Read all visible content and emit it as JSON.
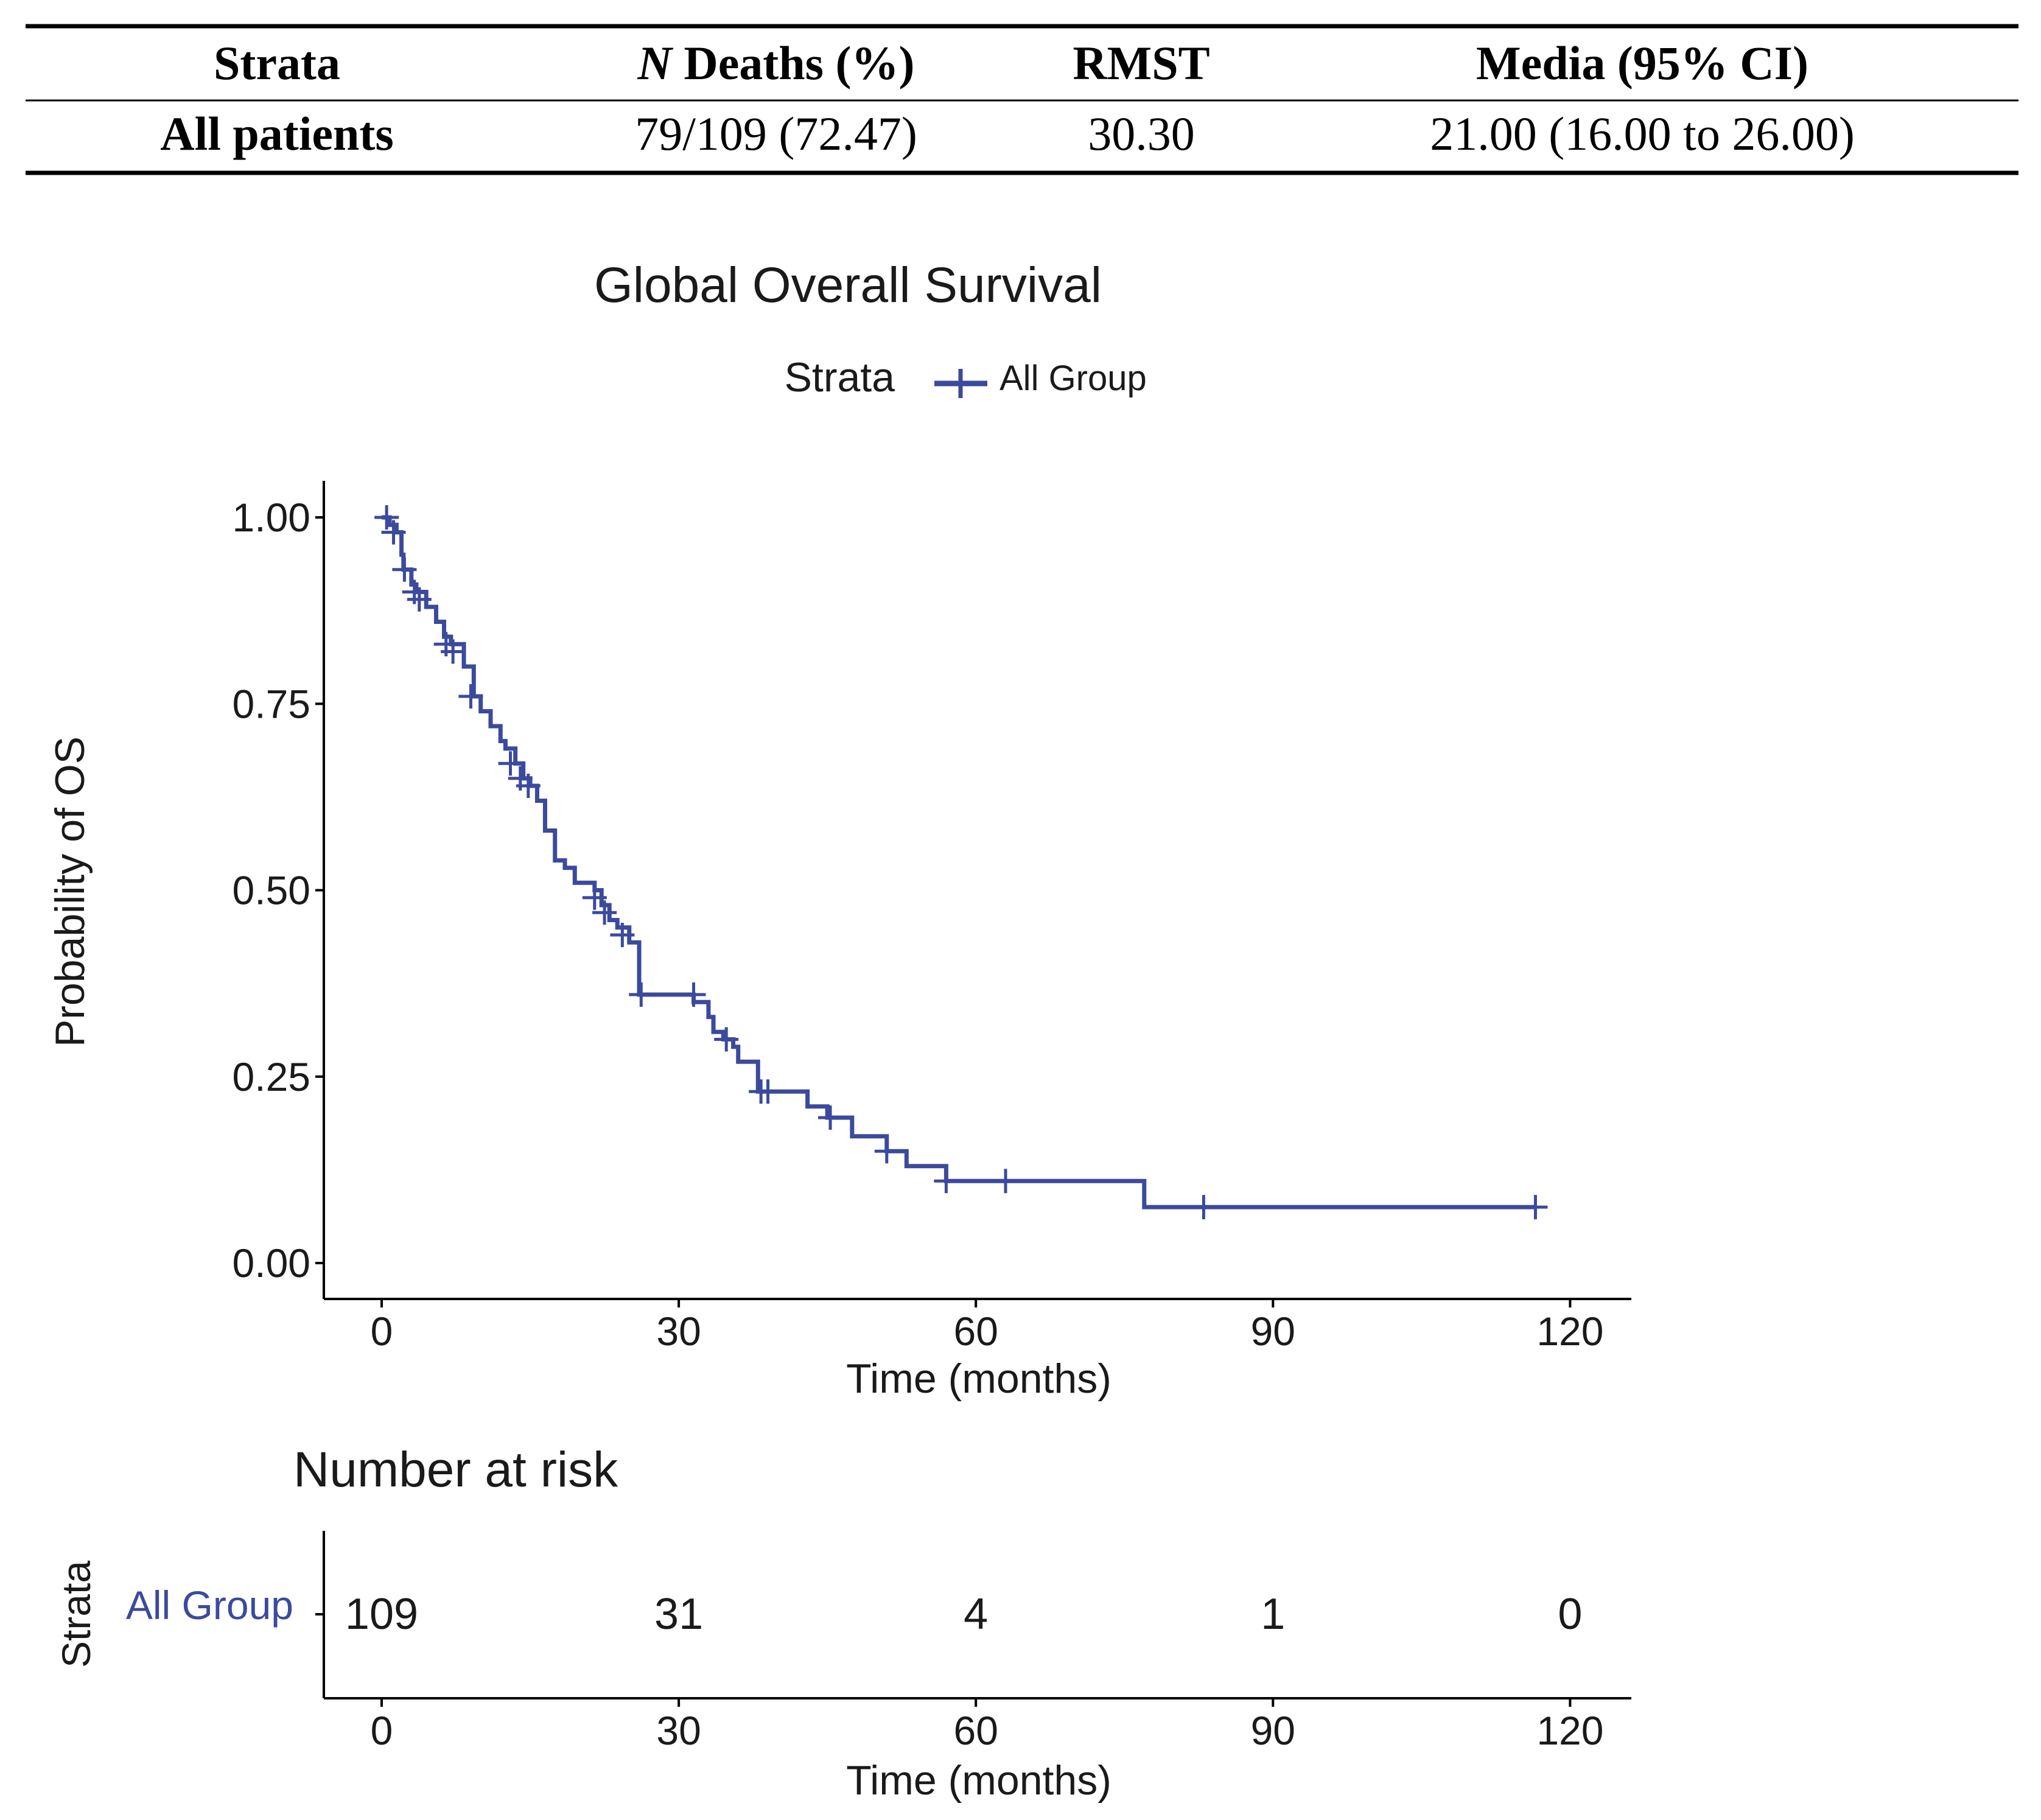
{
  "summary_table": {
    "headers": {
      "strata": "Strata",
      "n_italic": "N",
      "deaths_rest": " Deaths (%)",
      "rmst": "RMST",
      "median": "Media (95% CI)"
    },
    "rows": [
      {
        "strata": "All patients",
        "deaths": "79/109 (72.47)",
        "rmst": "30.30",
        "median": "21.00 (16.00 to 26.00)"
      }
    ]
  },
  "colors": {
    "series": "#3b4a9c",
    "axis": "#000000",
    "text": "#1a1a1a"
  },
  "chart_data": {
    "type": "line",
    "subtype": "kaplan-meier step",
    "title": "Global Overall Survival",
    "legend": {
      "title": "Strata",
      "label": "All Group",
      "placement": "top"
    },
    "xlabel": "Time (months)",
    "ylabel": "Probability of OS",
    "xlim": [
      -10,
      125
    ],
    "ylim": [
      -0.05,
      1.05
    ],
    "xticks": [
      0,
      30,
      60,
      90,
      120
    ],
    "xtick_labels": [
      "0",
      "30",
      "60",
      "90",
      "120"
    ],
    "yticks": [
      0,
      0.25,
      0.5,
      0.75,
      1.0
    ],
    "ytick_labels": [
      "0.00",
      "0.25",
      "0.50",
      "0.75",
      "1.00"
    ],
    "grid": false,
    "series": [
      {
        "name": "All Group",
        "steps": [
          [
            0,
            1.0
          ],
          [
            0.8,
            0.99
          ],
          [
            1.5,
            0.98
          ],
          [
            2,
            0.95
          ],
          [
            2.2,
            0.93
          ],
          [
            3,
            0.91
          ],
          [
            3.5,
            0.9
          ],
          [
            4.5,
            0.88
          ],
          [
            5.5,
            0.86
          ],
          [
            6.3,
            0.84
          ],
          [
            7,
            0.83
          ],
          [
            8.3,
            0.8
          ],
          [
            9.3,
            0.76
          ],
          [
            10,
            0.74
          ],
          [
            11,
            0.72
          ],
          [
            12,
            0.7
          ],
          [
            12.5,
            0.69
          ],
          [
            13.5,
            0.67
          ],
          [
            14.3,
            0.65
          ],
          [
            15,
            0.64
          ],
          [
            15.7,
            0.62
          ],
          [
            16.5,
            0.58
          ],
          [
            17.5,
            0.54
          ],
          [
            18.5,
            0.53
          ],
          [
            19.5,
            0.51
          ],
          [
            21.5,
            0.5
          ],
          [
            22.2,
            0.48
          ],
          [
            23,
            0.46
          ],
          [
            23.8,
            0.45
          ],
          [
            25,
            0.43
          ],
          [
            26,
            0.36
          ],
          [
            31.5,
            0.35
          ],
          [
            33,
            0.33
          ],
          [
            33.5,
            0.31
          ],
          [
            34.5,
            0.3
          ],
          [
            35.5,
            0.29
          ],
          [
            36,
            0.27
          ],
          [
            38,
            0.23
          ],
          [
            43,
            0.21
          ],
          [
            45,
            0.195
          ],
          [
            47.5,
            0.17
          ],
          [
            51,
            0.15
          ],
          [
            53,
            0.13
          ],
          [
            57,
            0.11
          ],
          [
            77,
            0.075
          ]
        ],
        "end_time": 116.5,
        "censored": [
          [
            0.5,
            1.0
          ],
          [
            1.2,
            0.98
          ],
          [
            2.3,
            0.93
          ],
          [
            3.3,
            0.9
          ],
          [
            3.8,
            0.89
          ],
          [
            6.5,
            0.83
          ],
          [
            7.2,
            0.82
          ],
          [
            9,
            0.76
          ],
          [
            13,
            0.67
          ],
          [
            14,
            0.65
          ],
          [
            14.8,
            0.64
          ],
          [
            21.5,
            0.49
          ],
          [
            22.5,
            0.47
          ],
          [
            24.3,
            0.44
          ],
          [
            26.2,
            0.36
          ],
          [
            31.5,
            0.36
          ],
          [
            34.8,
            0.3
          ],
          [
            38.3,
            0.23
          ],
          [
            39,
            0.23
          ],
          [
            45.3,
            0.195
          ],
          [
            51,
            0.15
          ],
          [
            57,
            0.11
          ],
          [
            63,
            0.11
          ],
          [
            83,
            0.075
          ],
          [
            116.5,
            0.075
          ]
        ]
      }
    ],
    "risk_table": {
      "title": "Number at risk",
      "ylabel": "Strata",
      "strata_label": "All Group",
      "times": [
        0,
        30,
        60,
        90,
        120
      ],
      "time_labels": [
        "0",
        "30",
        "60",
        "90",
        "120"
      ],
      "counts": [
        "109",
        "31",
        "4",
        "1",
        "0"
      ],
      "xlabel": "Time (months)"
    }
  }
}
